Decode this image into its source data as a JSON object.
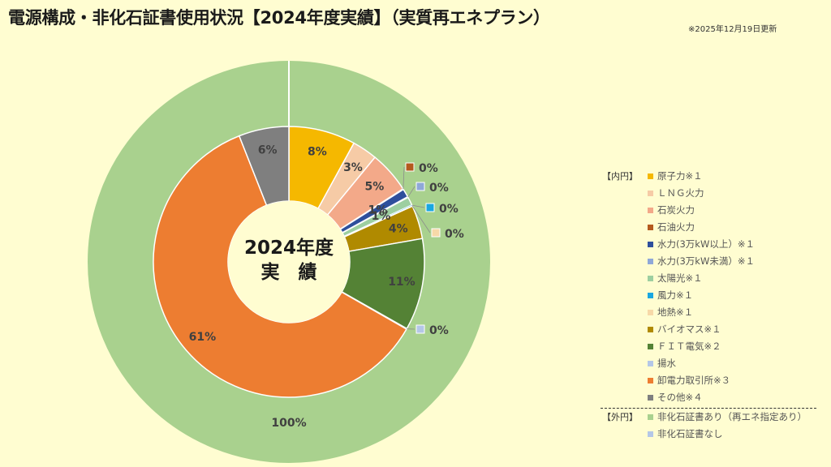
{
  "title": "電源構成・非化石証書使用状況【2024年度実績】（実質再エネプラン）",
  "update_note": "※2025年12月19日更新",
  "legend_groups": {
    "inner": "【内円】",
    "outer": "【外円】"
  },
  "chart_data": [
    {
      "type": "pie",
      "ring": "inner",
      "center_label": [
        "2024年度",
        "実　績"
      ],
      "slices": [
        {
          "name": "原子力※１",
          "value": 8,
          "label": "8%",
          "color": "#f5b800"
        },
        {
          "name": "ＬＮＧ火力",
          "value": 3,
          "label": "3%",
          "color": "#f6cba6"
        },
        {
          "name": "石炭火力",
          "value": 5,
          "label": "5%",
          "color": "#f3a989"
        },
        {
          "name": "石油火力",
          "value": 0,
          "label": "0%",
          "color": "#b45a1e"
        },
        {
          "name": "水力(3万kW以上）※１",
          "value": 1,
          "label": "1%",
          "color": "#2e4f9c"
        },
        {
          "name": "水力(3万kW未満）※１",
          "value": 0,
          "label": "0%",
          "color": "#8fa8d8"
        },
        {
          "name": "太陽光※１",
          "value": 1,
          "label": "1%",
          "color": "#9dcfa0"
        },
        {
          "name": "風力※１",
          "value": 0,
          "label": "0%",
          "color": "#1aa7e0"
        },
        {
          "name": "地熱※１",
          "value": 0,
          "label": "0%",
          "color": "#f7d9a8"
        },
        {
          "name": "バイオマス※１",
          "value": 4,
          "label": "4%",
          "color": "#b08a00"
        },
        {
          "name": "ＦＩＴ電気※２",
          "value": 11,
          "label": "11%",
          "color": "#548235"
        },
        {
          "name": "揚水",
          "value": 0,
          "label": "0%",
          "color": "#b4c7e7"
        },
        {
          "name": "卸電力取引所※３",
          "value": 61,
          "label": "61%",
          "color": "#ed7d31"
        },
        {
          "name": "その他※４",
          "value": 6,
          "label": "6%",
          "color": "#7f7f7f"
        }
      ]
    },
    {
      "type": "pie",
      "ring": "outer",
      "slices": [
        {
          "name": "非化石証書あり（再エネ指定あり）",
          "value": 100,
          "label": "100%",
          "color": "#a9d18e"
        },
        {
          "name": "非化石証書なし",
          "value": 0,
          "label": "",
          "color": "#b4c7e7"
        }
      ]
    }
  ]
}
